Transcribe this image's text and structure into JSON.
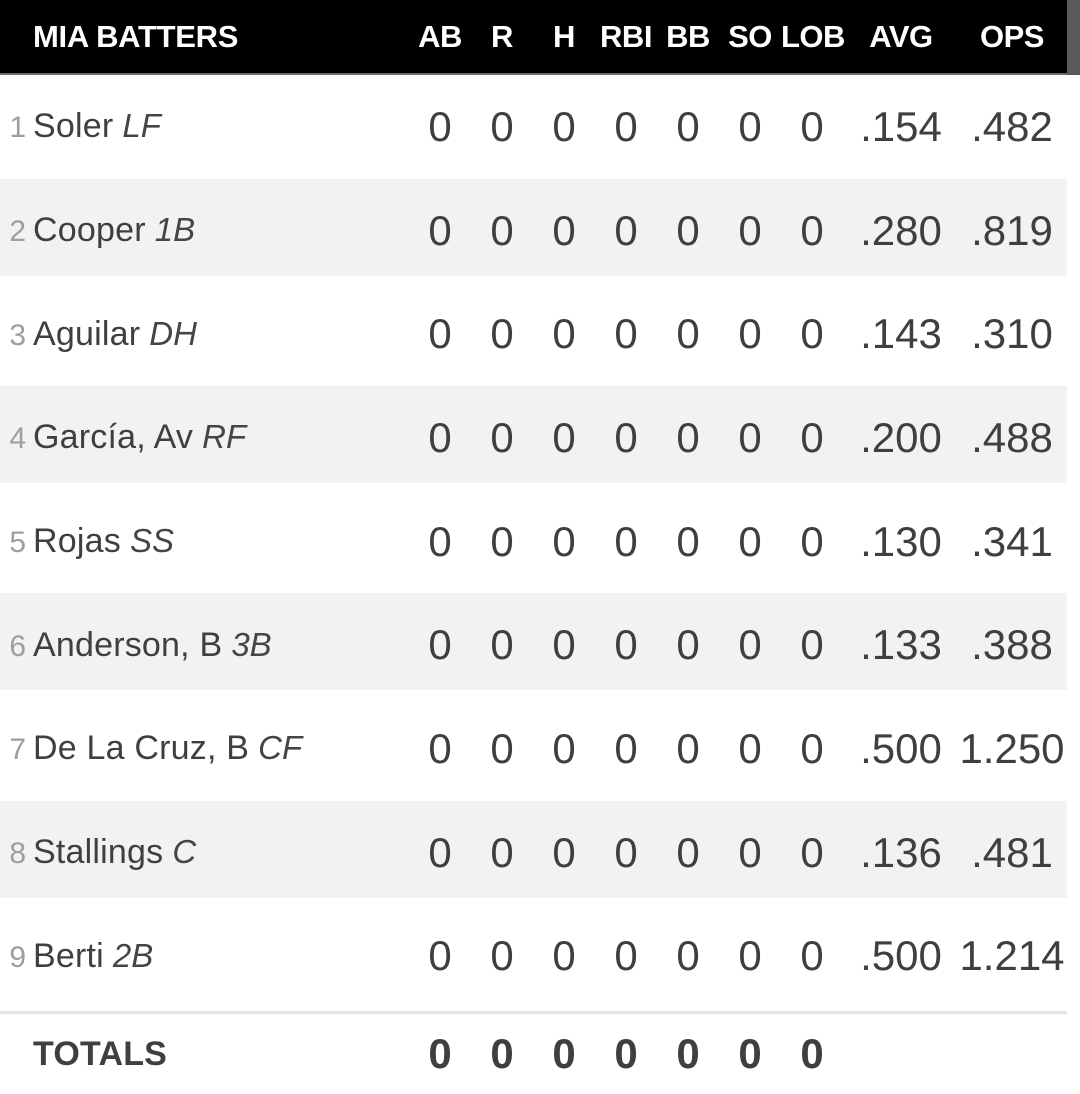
{
  "header": {
    "title": "MIA BATTERS",
    "columns": [
      "AB",
      "R",
      "H",
      "RBI",
      "BB",
      "SO",
      "LOB",
      "AVG",
      "OPS"
    ]
  },
  "players": [
    {
      "order": "1",
      "name": "Soler",
      "position": "LF",
      "stats": [
        "0",
        "0",
        "0",
        "0",
        "0",
        "0",
        "0",
        ".154",
        ".482"
      ]
    },
    {
      "order": "2",
      "name": "Cooper",
      "position": "1B",
      "stats": [
        "0",
        "0",
        "0",
        "0",
        "0",
        "0",
        "0",
        ".280",
        ".819"
      ]
    },
    {
      "order": "3",
      "name": "Aguilar",
      "position": "DH",
      "stats": [
        "0",
        "0",
        "0",
        "0",
        "0",
        "0",
        "0",
        ".143",
        ".310"
      ]
    },
    {
      "order": "4",
      "name": "García, Av",
      "position": "RF",
      "stats": [
        "0",
        "0",
        "0",
        "0",
        "0",
        "0",
        "0",
        ".200",
        ".488"
      ]
    },
    {
      "order": "5",
      "name": "Rojas",
      "position": "SS",
      "stats": [
        "0",
        "0",
        "0",
        "0",
        "0",
        "0",
        "0",
        ".130",
        ".341"
      ]
    },
    {
      "order": "6",
      "name": "Anderson, B",
      "position": "3B",
      "stats": [
        "0",
        "0",
        "0",
        "0",
        "0",
        "0",
        "0",
        ".133",
        ".388"
      ]
    },
    {
      "order": "7",
      "name": "De La Cruz, B",
      "position": "CF",
      "stats": [
        "0",
        "0",
        "0",
        "0",
        "0",
        "0",
        "0",
        ".500",
        "1.250"
      ]
    },
    {
      "order": "8",
      "name": "Stallings",
      "position": "C",
      "stats": [
        "0",
        "0",
        "0",
        "0",
        "0",
        "0",
        "0",
        ".136",
        ".481"
      ]
    },
    {
      "order": "9",
      "name": "Berti",
      "position": "2B",
      "stats": [
        "0",
        "0",
        "0",
        "0",
        "0",
        "0",
        "0",
        ".500",
        "1.214"
      ]
    }
  ],
  "totals": {
    "label": "TOTALS",
    "stats": [
      "0",
      "0",
      "0",
      "0",
      "0",
      "0",
      "0"
    ]
  },
  "colors": {
    "header_bg": "#000000",
    "header_text": "#ffffff",
    "row_text": "#3f3f3f",
    "order_number": "#9e9e9e",
    "position_text": "#454545",
    "stripe": "#f2f2f2",
    "divider": "#e4e4e4",
    "scrollbar_thumb": "#5a5a5c"
  }
}
